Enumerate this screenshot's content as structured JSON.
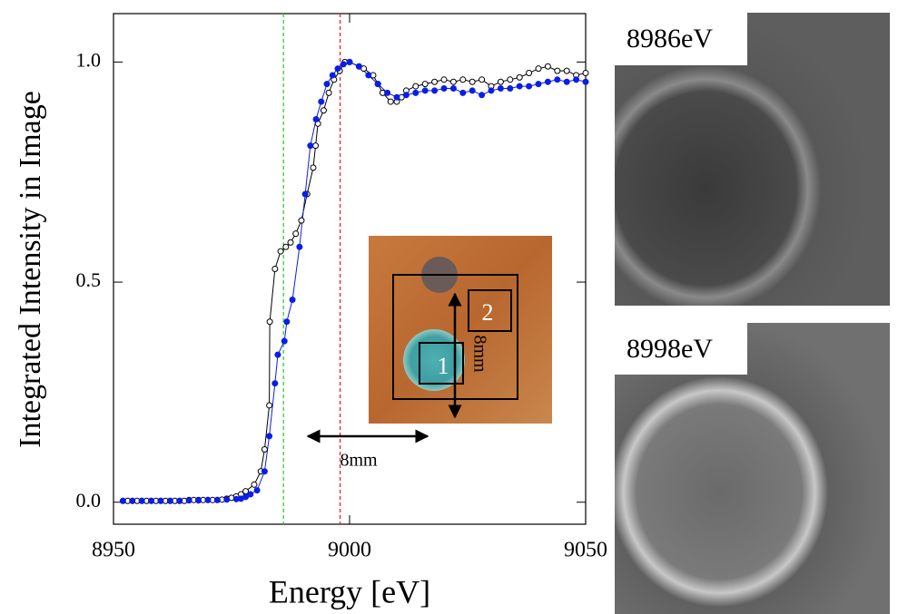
{
  "chart_data": {
    "type": "scatter",
    "x_label": "Energy [eV]",
    "y_label": "Integrated Intensity in Image",
    "xlim": [
      8950,
      9050
    ],
    "xticks": [
      8950,
      9000,
      9050
    ],
    "ylim": [
      -0.05,
      1.11
    ],
    "yticks": [
      {
        "value": 0,
        "label": "0.0"
      },
      {
        "value": 0.5,
        "label": "0.5"
      },
      {
        "value": 1,
        "label": "1.0"
      }
    ],
    "reference_lines": [
      {
        "x": 8986,
        "color": "#33cc33"
      },
      {
        "x": 8998,
        "color": "#ee2222"
      }
    ],
    "series": [
      {
        "color": "#000000",
        "marker": "open",
        "x": [
          8952,
          8953,
          8954,
          8955,
          8956,
          8957,
          8958,
          8959,
          8960,
          8961,
          8962,
          8963,
          8964,
          8965,
          8966,
          8967,
          8968,
          8969,
          8970,
          8971,
          8972,
          8973,
          8974,
          8975,
          8976,
          8977,
          8978,
          8979.8,
          8981.2,
          8982,
          8983,
          8983.1,
          8984.2,
          8985.4,
          8986.5,
          8987.5,
          8988.6,
          8989.8,
          8991,
          8992.3,
          8992.8,
          8993.3,
          8994.5,
          8995.6,
          8996.7,
          8997.9,
          8999,
          9000,
          9002,
          9003,
          9005,
          9006,
          9007,
          9008.7,
          9010,
          9011,
          9012,
          9014,
          9016,
          9018,
          9020,
          9022,
          9024,
          9026,
          9028,
          9030,
          9032,
          9034,
          9036,
          9038,
          9040,
          9042,
          9044,
          9046,
          9048,
          9050
        ],
        "values": [
          0.003,
          0.003,
          0.003,
          0.003,
          0.003,
          0.003,
          0.003,
          0.003,
          0.003,
          0.003,
          0.003,
          0.003,
          0.003,
          0.003,
          0.005,
          0.005,
          0.005,
          0.005,
          0.005,
          0.005,
          0.005,
          0.006,
          0.008,
          0.01,
          0.013,
          0.018,
          0.025,
          0.04,
          0.07,
          0.12,
          0.22,
          0.41,
          0.53,
          0.57,
          0.58,
          0.59,
          0.61,
          0.64,
          0.7,
          0.76,
          0.81,
          0.86,
          0.89,
          0.93,
          0.96,
          0.98,
          1.0,
          1.0,
          0.99,
          0.985,
          0.97,
          0.95,
          0.93,
          0.91,
          0.91,
          0.92,
          0.935,
          0.945,
          0.95,
          0.955,
          0.96,
          0.955,
          0.96,
          0.955,
          0.96,
          0.945,
          0.955,
          0.96,
          0.965,
          0.975,
          0.985,
          0.99,
          0.98,
          0.98,
          0.97,
          0.975
        ]
      },
      {
        "color": "#0a1ee6",
        "marker": "filled",
        "x": [
          8952,
          8954,
          8956,
          8958,
          8960,
          8962,
          8964,
          8966,
          8968,
          8970,
          8972,
          8974,
          8976,
          8977,
          8978,
          8979,
          8980.4,
          8982,
          8983,
          8984.2,
          8984.8,
          8986.2,
          8986.7,
          8987.9,
          8989.4,
          8990.6,
          8991.7,
          8992.9,
          8994,
          8995.2,
          8996.4,
          8997.5,
          8998.7,
          9000,
          9002,
          9004,
          9006,
          9008,
          9010,
          9012,
          9014,
          9016,
          9018,
          9020,
          9022,
          9024,
          9026,
          9028,
          9030,
          9032,
          9034,
          9036,
          9038,
          9040,
          9042,
          9044,
          9046,
          9048,
          9050
        ],
        "values": [
          0.003,
          0.003,
          0.003,
          0.003,
          0.003,
          0.003,
          0.003,
          0.004,
          0.004,
          0.005,
          0.005,
          0.006,
          0.007,
          0.008,
          0.012,
          0.018,
          0.027,
          0.07,
          0.15,
          0.27,
          0.335,
          0.366,
          0.41,
          0.46,
          0.58,
          0.7,
          0.81,
          0.87,
          0.91,
          0.95,
          0.97,
          0.985,
          0.995,
          1.0,
          0.99,
          0.97,
          0.95,
          0.93,
          0.92,
          0.925,
          0.93,
          0.935,
          0.935,
          0.94,
          0.94,
          0.93,
          0.935,
          0.925,
          0.935,
          0.94,
          0.94,
          0.945,
          0.945,
          0.95,
          0.955,
          0.96,
          0.955,
          0.96,
          0.955
        ]
      }
    ],
    "inset": {
      "region_labels": [
        "1",
        "2"
      ],
      "scale_horizontal": "8mm",
      "scale_vertical": "8mm"
    },
    "images": [
      {
        "label": "8986eV"
      },
      {
        "label": "8998eV"
      }
    ]
  }
}
